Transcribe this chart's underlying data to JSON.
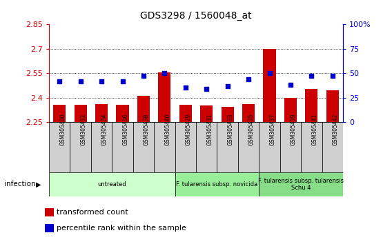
{
  "title": "GDS3298 / 1560048_at",
  "samples": [
    "GSM305430",
    "GSM305432",
    "GSM305434",
    "GSM305436",
    "GSM305438",
    "GSM305440",
    "GSM305429",
    "GSM305431",
    "GSM305433",
    "GSM305435",
    "GSM305437",
    "GSM305439",
    "GSM305441",
    "GSM305442"
  ],
  "bar_values": [
    2.355,
    2.355,
    2.36,
    2.355,
    2.41,
    2.555,
    2.355,
    2.35,
    2.345,
    2.36,
    2.7,
    2.4,
    2.455,
    2.445
  ],
  "dot_values": [
    42,
    42,
    42,
    42,
    47,
    50,
    35,
    34,
    37,
    44,
    50,
    38,
    47,
    47
  ],
  "bar_color": "#cc0000",
  "dot_color": "#0000cc",
  "ylim_left": [
    2.25,
    2.85
  ],
  "ylim_right": [
    0,
    100
  ],
  "yticks_left": [
    2.25,
    2.4,
    2.55,
    2.7,
    2.85
  ],
  "yticks_right": [
    0,
    25,
    50,
    75,
    100
  ],
  "ytick_labels_left": [
    "2.25",
    "2.4",
    "2.55",
    "2.7",
    "2.85"
  ],
  "ytick_labels_right": [
    "0",
    "25",
    "50",
    "75",
    "100%"
  ],
  "hlines": [
    2.4,
    2.55,
    2.7
  ],
  "groups": [
    {
      "label": "untreated",
      "start": 0,
      "end": 6,
      "color": "#ccffcc"
    },
    {
      "label": "F. tularensis subsp. novicida",
      "start": 6,
      "end": 10,
      "color": "#99ee99"
    },
    {
      "label": "F. tularensis subsp. tularensis\nSchu 4",
      "start": 10,
      "end": 14,
      "color": "#88dd88"
    }
  ],
  "infection_label": "infection",
  "legend_items": [
    {
      "color": "#cc0000",
      "label": "transformed count"
    },
    {
      "color": "#0000cc",
      "label": "percentile rank within the sample"
    }
  ],
  "left_axis_color": "#cc0000",
  "right_axis_color": "#0000cc",
  "sample_box_color": "#d0d0d0"
}
